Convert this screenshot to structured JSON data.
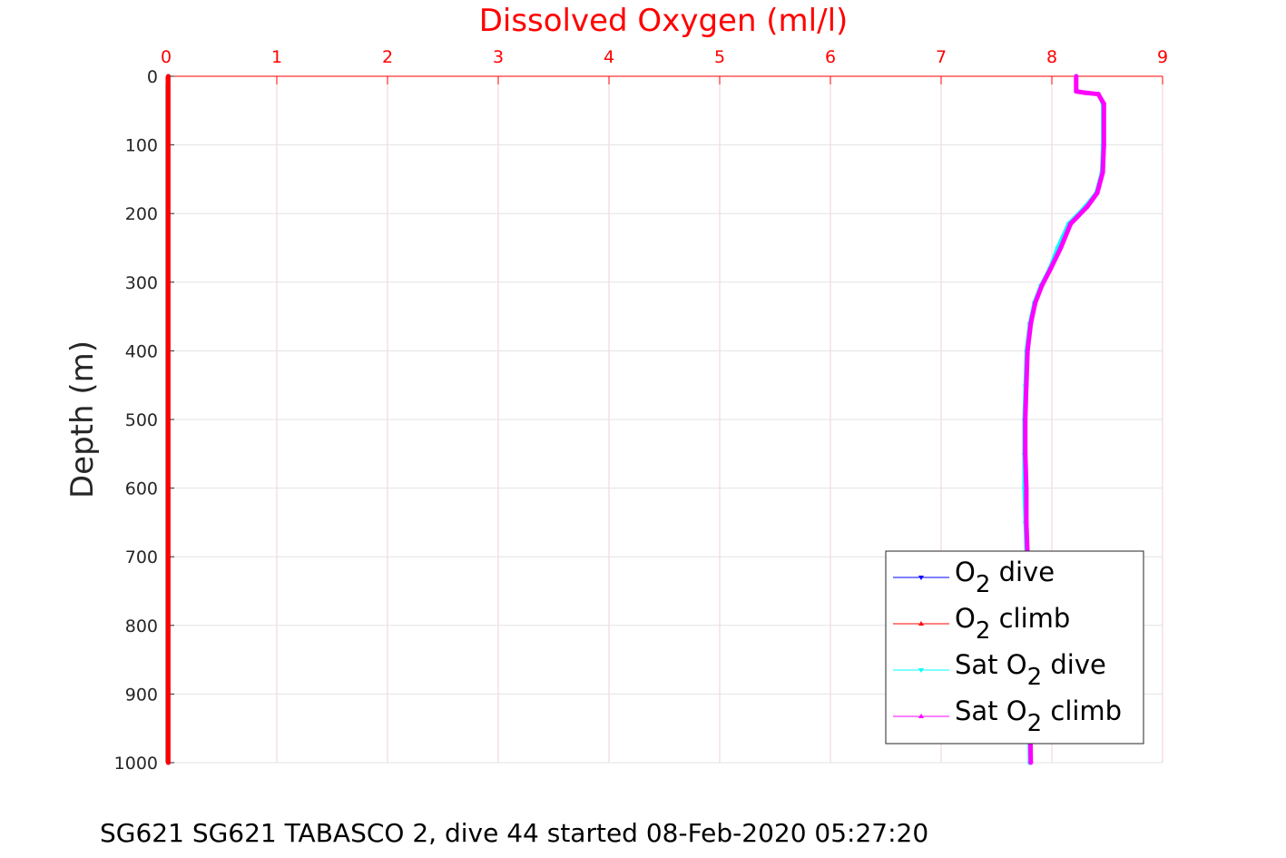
{
  "chart_data": {
    "type": "line",
    "title": "Dissolved Oxygen (ml/l)",
    "xlabel": "",
    "ylabel": "Depth (m)",
    "xlim": [
      0,
      9
    ],
    "ylim": [
      0,
      1000
    ],
    "y_reversed": true,
    "x_axis_location": "top",
    "x_ticks": [
      "0",
      "1",
      "2",
      "3",
      "4",
      "5",
      "6",
      "7",
      "8",
      "9"
    ],
    "y_ticks": [
      "0",
      "100",
      "200",
      "300",
      "400",
      "500",
      "600",
      "700",
      "800",
      "900",
      "1000"
    ],
    "grid": true,
    "legend_position": "bottom-right",
    "footer": "SG621 SG621 TABASCO 2, dive 44 started 08-Feb-2020 05:27:20",
    "series": [
      {
        "name": "O2 dive",
        "legend_base": "O",
        "legend_sub": "2",
        "legend_suffix": " dive",
        "color": "#0000ff",
        "marker": "triangle-down",
        "x": [
          0.02,
          0.02,
          0.02,
          0.02
        ],
        "y": [
          0,
          300,
          700,
          1000
        ]
      },
      {
        "name": "O2 climb",
        "legend_base": "O",
        "legend_sub": "2",
        "legend_suffix": " climb",
        "color": "#ff0000",
        "marker": "triangle-up",
        "x": [
          0.02,
          0.02,
          0.02,
          0.02
        ],
        "y": [
          0,
          300,
          700,
          1000
        ]
      },
      {
        "name": "Sat O2 dive",
        "legend_base": "Sat O",
        "legend_sub": "2",
        "legend_suffix": " dive",
        "color": "#00ffff",
        "marker": "triangle-down",
        "x": [
          8.22,
          8.22,
          8.3,
          8.42,
          8.46,
          8.46,
          8.45,
          8.4,
          8.3,
          8.15,
          8.05,
          7.98,
          7.9,
          7.84,
          7.8,
          7.77,
          7.76,
          7.75,
          7.75,
          7.75,
          7.76,
          7.77,
          7.77,
          7.78,
          7.79,
          7.8
        ],
        "y": [
          0,
          22,
          24,
          26,
          40,
          100,
          140,
          170,
          190,
          215,
          250,
          280,
          305,
          330,
          360,
          400,
          450,
          500,
          550,
          600,
          650,
          700,
          750,
          800,
          900,
          1000
        ]
      },
      {
        "name": "Sat O2 climb",
        "legend_base": "Sat O",
        "legend_sub": "2",
        "legend_suffix": " climb",
        "color": "#ff00ff",
        "marker": "triangle-up",
        "x": [
          8.22,
          8.22,
          8.3,
          8.42,
          8.47,
          8.47,
          8.46,
          8.41,
          8.32,
          8.17,
          8.08,
          7.99,
          7.91,
          7.85,
          7.81,
          7.78,
          7.77,
          7.76,
          7.76,
          7.77,
          7.77,
          7.78,
          7.78,
          7.79,
          7.8,
          7.81
        ],
        "y": [
          0,
          22,
          24,
          26,
          40,
          100,
          140,
          170,
          190,
          215,
          250,
          280,
          305,
          330,
          360,
          400,
          450,
          500,
          550,
          600,
          650,
          700,
          750,
          800,
          900,
          1000
        ]
      }
    ]
  }
}
